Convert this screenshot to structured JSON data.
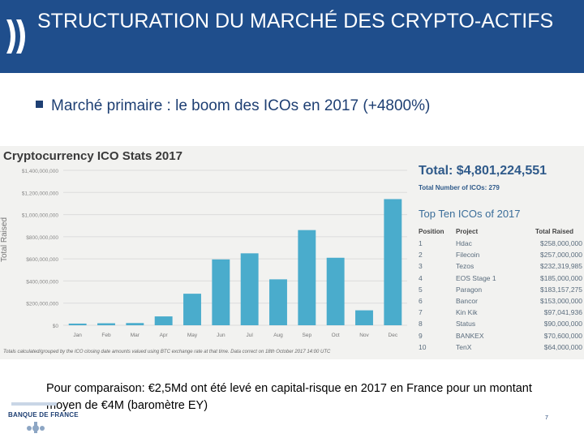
{
  "header": {
    "title": "STRUCTURATION DU MARCHÉ DES CRYPTO-ACTIFS"
  },
  "bullet": {
    "text": "Marché primaire : le boom des ICOs en 2017 (+4800%)"
  },
  "chart_data": {
    "type": "bar",
    "title": "Cryptocurrency ICO Stats 2017",
    "ylabel": "Total Raised",
    "xlabel": "",
    "categories": [
      "Jan",
      "Feb",
      "Mar",
      "Apr",
      "May",
      "Jun",
      "Jul",
      "Aug",
      "Sep",
      "Oct",
      "Nov",
      "Dec"
    ],
    "values": [
      15000000,
      18000000,
      20000000,
      80000000,
      285000000,
      595000000,
      650000000,
      415000000,
      860000000,
      610000000,
      135000000,
      1140000000
    ],
    "ylim": [
      0,
      1400000000
    ],
    "ytick_labels": [
      "$0",
      "$200,000,000",
      "$400,000,000",
      "$600,000,000",
      "$800,000,000",
      "$1,000,000,000",
      "$1,200,000,000",
      "$1,400,000,000"
    ],
    "ytick_values": [
      0,
      200000000,
      400000000,
      600000000,
      800000000,
      1000000000,
      1200000000,
      1400000000
    ],
    "grid": true,
    "bar_color": "#4aaccc",
    "footnote": "Totals calculated/grouped by the ICO closing date amounts valued using BTC exchange rate at that time. Data correct on 18th October 2017 14:00 UTC"
  },
  "stats": {
    "total_label": "Total: $4,801,224,551",
    "count_label": "Total Number of ICOs: 279",
    "top10_title": "Top Ten ICOs of 2017",
    "columns": [
      "Position",
      "Project",
      "Total Raised"
    ],
    "rows": [
      [
        "1",
        "Hdac",
        "$258,000,000"
      ],
      [
        "2",
        "Filecoin",
        "$257,000,000"
      ],
      [
        "3",
        "Tezos",
        "$232,319,985"
      ],
      [
        "4",
        "EOS Stage 1",
        "$185,000,000"
      ],
      [
        "5",
        "Paragon",
        "$183,157,275"
      ],
      [
        "6",
        "Bancor",
        "$153,000,000"
      ],
      [
        "7",
        "Kin Kik",
        "$97,041,936"
      ],
      [
        "8",
        "Status",
        "$90,000,000"
      ],
      [
        "9",
        "BANKEX",
        "$70,600,000"
      ],
      [
        "10",
        "TenX",
        "$64,000,000"
      ]
    ]
  },
  "note": {
    "text": "Pour comparaison: €2,5Md ont été levé en capital-risque en 2017 en France pour un montant moyen de €4M (baromètre EY)"
  },
  "footer": {
    "logo_text": "BANQUE DE FRANCE",
    "page_number": "7"
  },
  "colors": {
    "header_bg": "#1f4e8c",
    "bar": "#4aaccc",
    "accent": "#2f5a8a"
  }
}
